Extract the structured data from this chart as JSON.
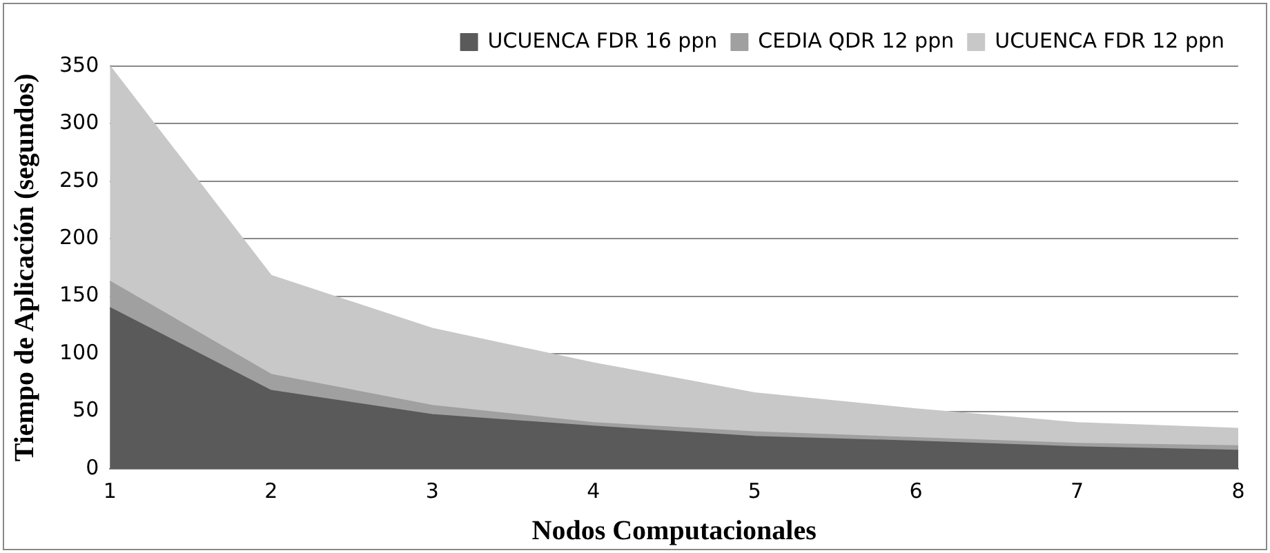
{
  "chart_data": {
    "type": "area",
    "xlabel": "Nodos Computacionales",
    "ylabel": "Tiempo de Aplicación (segundos)",
    "categories": [
      "1",
      "2",
      "3",
      "4",
      "5",
      "6",
      "7",
      "8"
    ],
    "series": [
      {
        "name": "CEDIA QDR 12 ppn",
        "color": "#a0a0a0",
        "values": [
          163,
          82,
          55,
          40,
          32,
          27,
          22,
          20
        ]
      },
      {
        "name": "UCUENCA FDR 12 ppn",
        "color": "#c8c8c8",
        "values": [
          350,
          168,
          122,
          92,
          66,
          52,
          40,
          35
        ]
      },
      {
        "name": "UCUENCA FDR 16 ppn",
        "color": "#5a5a5a",
        "values": [
          140,
          68,
          47,
          37,
          28,
          24,
          19,
          16
        ]
      }
    ],
    "ylim": [
      0,
      350
    ],
    "yticks": [
      0,
      50,
      100,
      150,
      200,
      250,
      300,
      350
    ],
    "grid": "y",
    "legend": "top",
    "marker": "none"
  }
}
